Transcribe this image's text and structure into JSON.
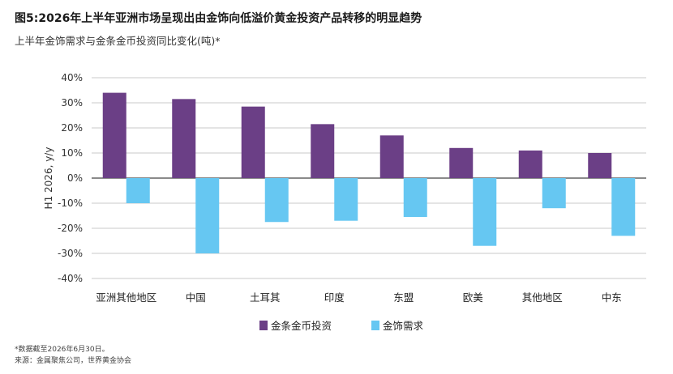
{
  "header": {
    "title": "图5:2026年上半年亚洲市场呈现出由金饰向低溢价黄金投资产品转移的明显趋势",
    "subtitle": "上半年金饰需求与金条金币投资同比变化(吨)*"
  },
  "footer": {
    "note": "*数据截至2026年6月30日。",
    "source": "来源：金属聚焦公司，世界黄金协会"
  },
  "colors": {
    "bar_invest": "#6b3f86",
    "jewelry": "#66c7f2",
    "grid": "#c8c8c8",
    "axis": "#444444"
  },
  "chart_data": {
    "type": "bar",
    "title": "图5:2026年上半年亚洲市场呈现出由金饰向低溢价黄金投资产品转移的明显趋势",
    "subtitle": "上半年金饰需求与金条金币投资同比变化(吨)*",
    "xlabel": "",
    "ylabel": "H1 2026, y/y",
    "ylim": [
      -40,
      40
    ],
    "ytick_step": 10,
    "yticks": [
      "40%",
      "30%",
      "20%",
      "10%",
      "0%",
      "-10%",
      "-20%",
      "-30%",
      "-40%"
    ],
    "categories": [
      "亚洲其他地区",
      "中国",
      "土耳其",
      "印度",
      "东盟",
      "欧美",
      "其他地区",
      "中东"
    ],
    "series": [
      {
        "name": "金条金币投资",
        "values": [
          34,
          31.5,
          28.5,
          21.5,
          17,
          12,
          11,
          10
        ],
        "color": "#6b3f86"
      },
      {
        "name": "金饰需求",
        "values": [
          -10,
          -30,
          -17.5,
          -17,
          -15.5,
          -27,
          -12,
          -23
        ],
        "color": "#66c7f2"
      }
    ],
    "grid": true,
    "legend_position": "bottom-center"
  }
}
